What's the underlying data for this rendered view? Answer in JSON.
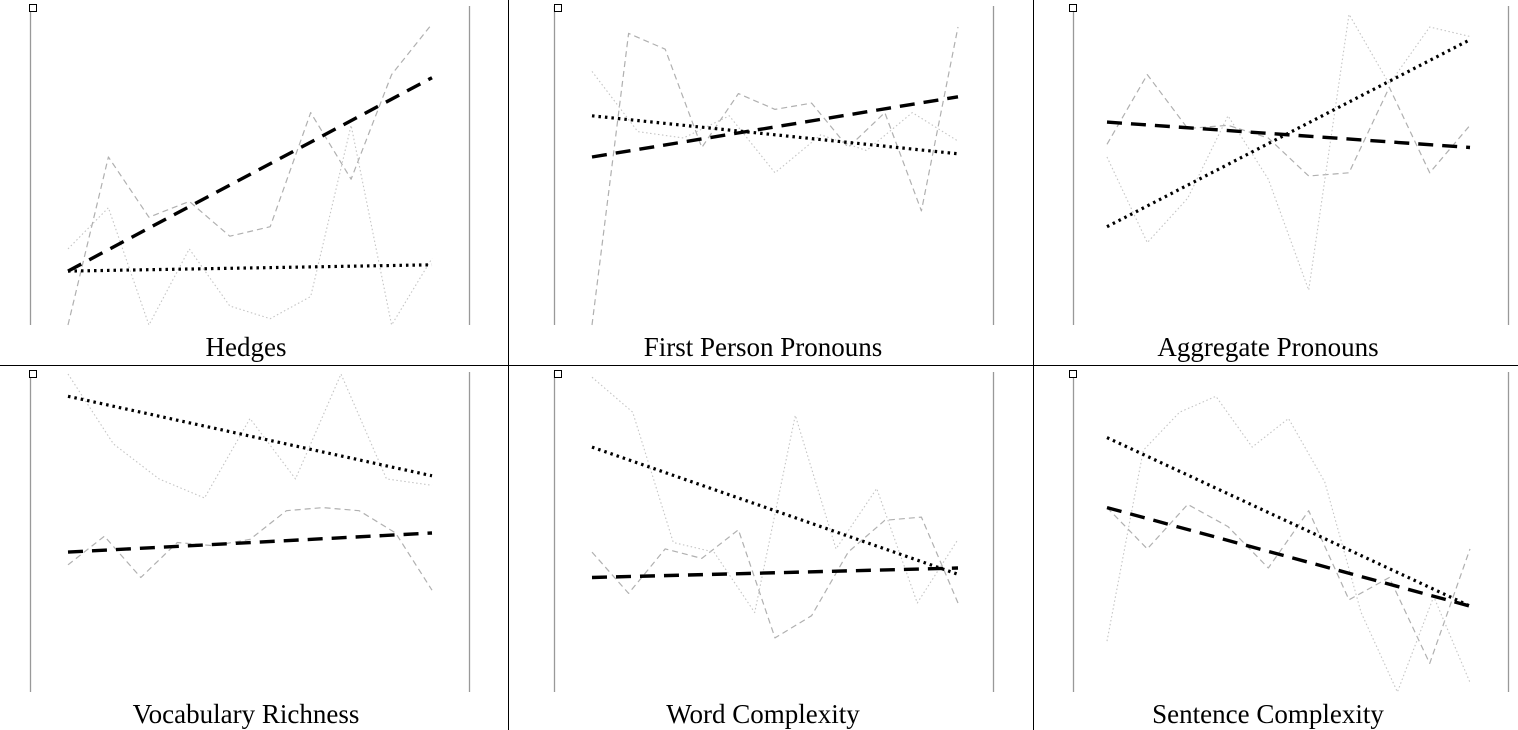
{
  "chart_data": [
    {
      "type": "line",
      "title": "Hedges",
      "series": [
        {
          "style": "light-dashed",
          "values": [
            0.0,
            0.53,
            0.34,
            0.39,
            0.28,
            0.31,
            0.67,
            0.46,
            0.79,
            0.95
          ]
        },
        {
          "style": "light-dotted",
          "values": [
            0.24,
            0.37,
            0.0,
            0.24,
            0.06,
            0.02,
            0.09,
            0.63,
            0.0,
            0.21
          ]
        },
        {
          "style": "trend-dashed",
          "values": [
            0.17,
            0.78
          ]
        },
        {
          "style": "trend-dotted",
          "values": [
            0.17,
            0.19
          ]
        }
      ]
    },
    {
      "type": "line",
      "title": "First Person Pronouns",
      "series": [
        {
          "style": "light-dashed",
          "values": [
            0.0,
            0.92,
            0.87,
            0.56,
            0.73,
            0.68,
            0.7,
            0.56,
            0.67,
            0.36,
            0.94
          ]
        },
        {
          "style": "light-dotted",
          "values": [
            0.8,
            0.61,
            0.59,
            0.66,
            0.48,
            0.6,
            0.55,
            0.67,
            0.58
          ]
        },
        {
          "style": "trend-dashed",
          "values": [
            0.53,
            0.72
          ]
        },
        {
          "style": "trend-dotted",
          "values": [
            0.66,
            0.54
          ]
        }
      ]
    },
    {
      "type": "line",
      "title": "Aggregate Pronouns",
      "series": [
        {
          "style": "light-dashed",
          "values": [
            0.57,
            0.79,
            0.62,
            0.63,
            0.59,
            0.47,
            0.48,
            0.75,
            0.48,
            0.63
          ]
        },
        {
          "style": "light-dotted",
          "values": [
            0.53,
            0.26,
            0.4,
            0.66,
            0.46,
            0.11,
            0.98,
            0.76,
            0.94,
            0.91
          ]
        },
        {
          "style": "trend-dashed",
          "values": [
            0.64,
            0.56
          ]
        },
        {
          "style": "trend-dotted",
          "values": [
            0.31,
            0.9
          ]
        }
      ]
    },
    {
      "type": "line",
      "title": "Vocabulary Richness",
      "series": [
        {
          "style": "light-dashed",
          "values": [
            0.4,
            0.49,
            0.36,
            0.47,
            0.46,
            0.48,
            0.57,
            0.58,
            0.57,
            0.5,
            0.32
          ]
        },
        {
          "style": "light-dotted",
          "values": [
            1.0,
            0.78,
            0.67,
            0.61,
            0.86,
            0.67,
            1.0,
            0.67,
            0.65
          ]
        },
        {
          "style": "trend-dashed",
          "values": [
            0.44,
            0.5
          ]
        },
        {
          "style": "trend-dotted",
          "values": [
            0.93,
            0.68
          ]
        }
      ]
    },
    {
      "type": "line",
      "title": "Word Complexity",
      "series": [
        {
          "style": "light-dashed",
          "values": [
            0.44,
            0.31,
            0.45,
            0.42,
            0.51,
            0.17,
            0.24,
            0.44,
            0.54,
            0.55,
            0.28
          ]
        },
        {
          "style": "light-dotted",
          "values": [
            0.99,
            0.88,
            0.47,
            0.44,
            0.25,
            0.87,
            0.45,
            0.64,
            0.28,
            0.48
          ]
        },
        {
          "style": "trend-dashed",
          "values": [
            0.36,
            0.39
          ]
        },
        {
          "style": "trend-dotted",
          "values": [
            0.77,
            0.37
          ]
        }
      ]
    },
    {
      "type": "line",
      "title": "Sentence Complexity",
      "series": [
        {
          "style": "light-dashed",
          "values": [
            0.58,
            0.45,
            0.59,
            0.52,
            0.39,
            0.57,
            0.29,
            0.36,
            0.09,
            0.45
          ]
        },
        {
          "style": "light-dotted",
          "values": [
            0.16,
            0.76,
            0.88,
            0.93,
            0.77,
            0.86,
            0.66,
            0.25,
            0.0,
            0.3,
            0.03
          ]
        },
        {
          "style": "trend-dashed",
          "values": [
            0.58,
            0.27
          ]
        },
        {
          "style": "trend-dotted",
          "values": [
            0.8,
            0.27
          ]
        }
      ]
    }
  ]
}
